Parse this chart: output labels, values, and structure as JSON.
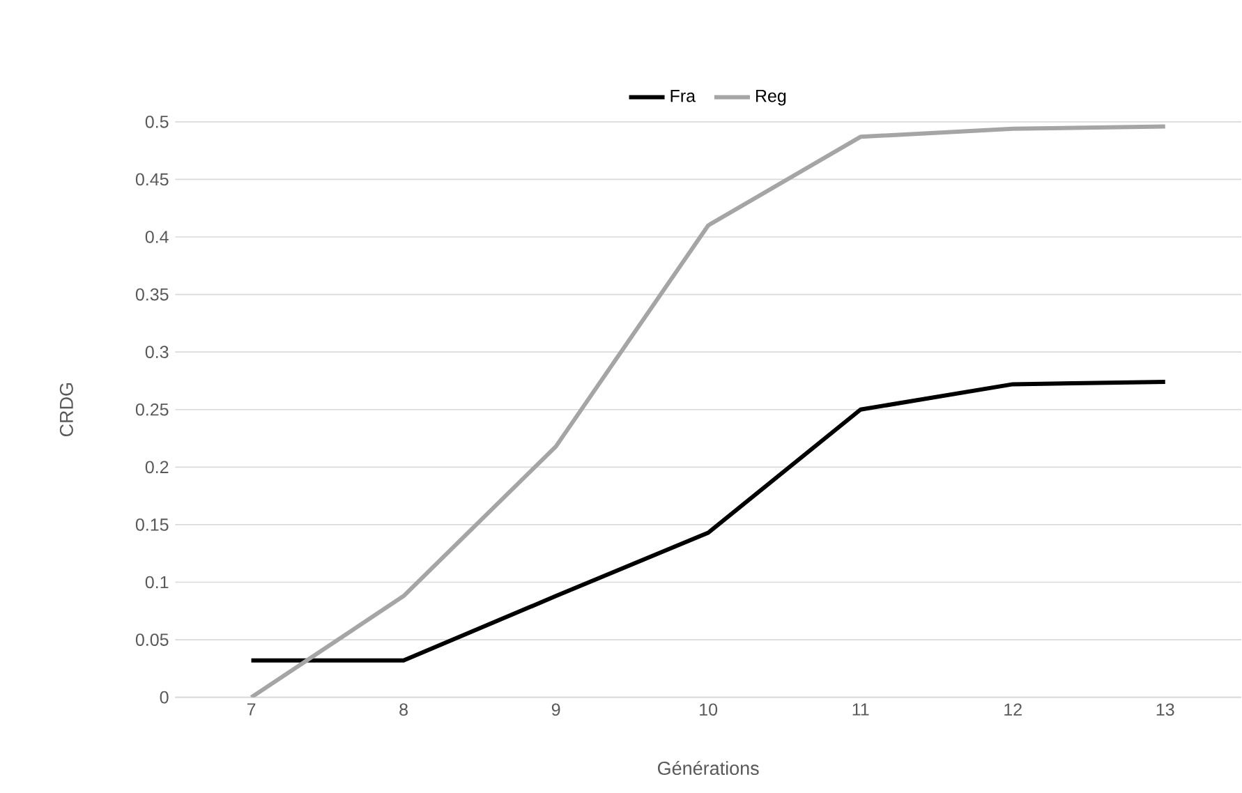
{
  "chart_data": {
    "type": "line",
    "xlabel": "Générations",
    "ylabel": "CRDG",
    "categories": [
      "7",
      "8",
      "9",
      "10",
      "11",
      "12",
      "13"
    ],
    "series": [
      {
        "name": "Fra",
        "color": "#000000",
        "values": [
          0.032,
          0.032,
          0.088,
          0.143,
          0.25,
          0.272,
          0.274
        ]
      },
      {
        "name": "Reg",
        "color": "#a5a5a5",
        "values": [
          0,
          0.088,
          0.218,
          0.41,
          0.487,
          0.494,
          0.496
        ]
      }
    ],
    "ylim": [
      0,
      0.5
    ],
    "yticks": [
      0,
      0.05,
      0.1,
      0.15,
      0.2,
      0.25,
      0.3,
      0.35,
      0.4,
      0.45,
      0.5
    ],
    "grid": "y",
    "legend": "top"
  }
}
